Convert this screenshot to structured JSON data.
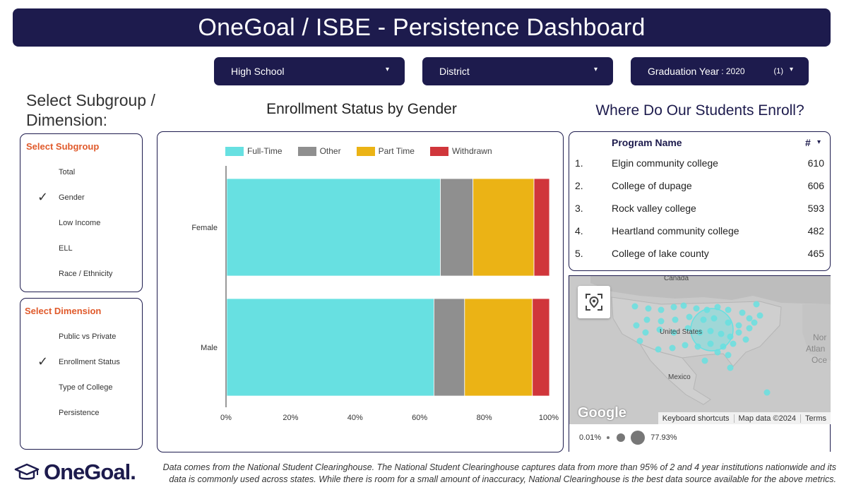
{
  "header": {
    "title": "OneGoal / ISBE - Persistence Dashboard"
  },
  "filters": {
    "high_school": "High School",
    "district": "District",
    "grad_year_label": "Graduation Year",
    "grad_year_value": ": 2020",
    "grad_year_count": "(1)",
    "caret": "▾"
  },
  "left": {
    "title": "Select Subgroup / Dimension:",
    "subgroup": {
      "heading": "Select Subgroup",
      "options": [
        "Total",
        "Gender",
        "Low Income",
        "ELL",
        "Race / Ethnicity"
      ],
      "selected": "Gender"
    },
    "dimension": {
      "heading": "Select Dimension",
      "options": [
        "Public vs Private",
        "Enrollment Status",
        "Type of College",
        "Persistence"
      ],
      "selected": "Enrollment Status"
    },
    "check_glyph": "✓"
  },
  "chart_data": {
    "type": "bar",
    "orientation": "horizontal",
    "stacked": true,
    "percent": true,
    "title": "Enrollment Status by Gender",
    "categories": [
      "Female",
      "Male"
    ],
    "series": [
      {
        "name": "Full-Time",
        "color": "#67e0e1",
        "values": [
          66.2,
          64.2
        ]
      },
      {
        "name": "Other",
        "color": "#8f8f8f",
        "values": [
          10.1,
          9.5
        ]
      },
      {
        "name": "Part Time",
        "color": "#ebb315",
        "values": [
          18.9,
          21.0
        ]
      },
      {
        "name": "Withdrawn",
        "color": "#d0363b",
        "values": [
          4.8,
          5.3
        ]
      }
    ],
    "xticks": [
      "0%",
      "20%",
      "40%",
      "60%",
      "80%",
      "100%"
    ],
    "xlim": [
      0,
      100
    ],
    "legend_position": "top",
    "grid": false
  },
  "enroll": {
    "title": "Where Do Our Students Enroll?",
    "col_program": "Program Name",
    "col_count": "#",
    "sort_icon": "▾",
    "rows": [
      {
        "rank": "1.",
        "name": "Elgin community college",
        "count": "610"
      },
      {
        "rank": "2.",
        "name": "College of dupage",
        "count": "606"
      },
      {
        "rank": "3.",
        "name": "Rock valley college",
        "count": "593"
      },
      {
        "rank": "4.",
        "name": "Heartland community college",
        "count": "482"
      },
      {
        "rank": "5.",
        "name": "College of lake county",
        "count": "465"
      }
    ]
  },
  "map": {
    "labels": {
      "canada": "Canada",
      "us": "United States",
      "mexico": "Mexico",
      "north": "Nor",
      "atlantic": "Atlan",
      "ocean": "Oce"
    },
    "google": "Google",
    "attribution": [
      "Keyboard shortcuts",
      "Map data ©2024",
      "Terms"
    ],
    "legend_min": "0.01%",
    "legend_max": "77.93%",
    "bubble_color": "#67e0e1"
  },
  "footer": {
    "logo": "OneGoal.",
    "note": "Data comes from the National Student Clearinghouse. The National Student Clearinghouse captures data from more than 95% of 2 and 4 year institutions nationwide and its data is commonly used across states. While there is room for a small amount of inaccuracy, National Clearinghouse is the best data source available for the above metrics."
  }
}
